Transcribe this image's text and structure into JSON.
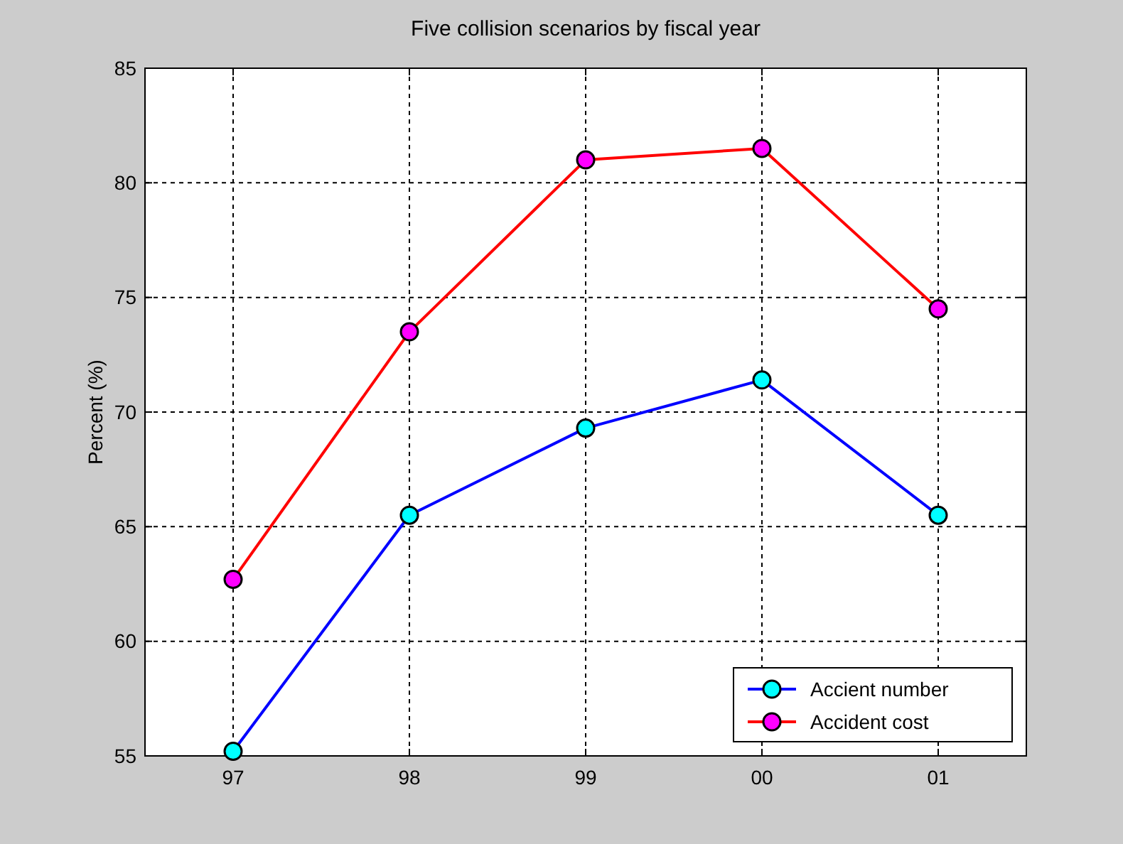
{
  "chart_data": {
    "type": "line",
    "title": "Five collision scenarios by fiscal year",
    "ylabel": "Percent (%)",
    "categories": [
      "97",
      "98",
      "99",
      "00",
      "01"
    ],
    "series": [
      {
        "name": "Accient number",
        "color": "#0000ff",
        "colors": [
          "#00ffff",
          "#00ffff",
          "#00ffff",
          "#00ffff",
          "#00ffff"
        ],
        "values": [
          55.2,
          65.5,
          69.3,
          71.4,
          65.5
        ]
      },
      {
        "name": "Accident cost",
        "color": "#ff0000",
        "colors": [
          "#ff00ff",
          "#ff00ff",
          "#ff00ff",
          "#ff00ff",
          "#ff00ff"
        ],
        "values": [
          62.7,
          73.5,
          81.0,
          81.5,
          74.5
        ]
      }
    ],
    "ylim": [
      55,
      85
    ],
    "yticks": [
      55,
      60,
      65,
      70,
      75,
      80,
      85
    ],
    "grid": true,
    "legend": "bottom right",
    "marker": "circle",
    "line_style": "solid"
  }
}
